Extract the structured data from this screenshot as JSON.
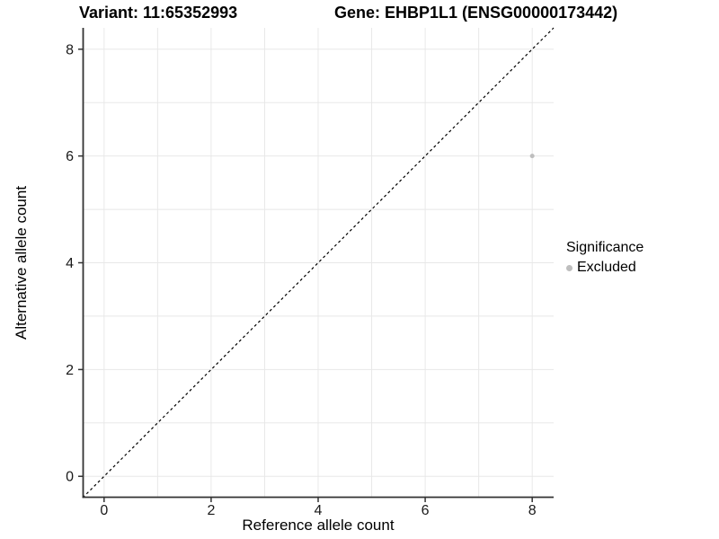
{
  "chart_data": {
    "type": "scatter",
    "title_left": "Variant: 11:65352993",
    "title_right": "Gene: EHBP1L1 (ENSG00000173442)",
    "xlabel": "Reference allele count",
    "ylabel": "Alternative allele count",
    "xlim": [
      -0.4,
      8.4
    ],
    "ylim": [
      -0.4,
      8.4
    ],
    "xticks": [
      0,
      2,
      4,
      6,
      8
    ],
    "yticks": [
      0,
      2,
      4,
      6,
      8
    ],
    "gridlines_x": [
      0,
      1,
      2,
      3,
      4,
      5,
      6,
      7,
      8
    ],
    "gridlines_y": [
      0,
      1,
      2,
      3,
      4,
      5,
      6,
      7,
      8
    ],
    "grid": true,
    "identity_line": {
      "type": "dashed",
      "x1": -0.4,
      "y1": -0.4,
      "x2": 8.4,
      "y2": 8.4,
      "color": "#000000"
    },
    "series": [
      {
        "name": "Excluded",
        "color": "#bebebe",
        "points": [
          {
            "x": 8,
            "y": 6
          }
        ]
      }
    ],
    "legend": {
      "position": "right",
      "title": "Significance",
      "items": [
        {
          "label": "Excluded",
          "color": "#bebebe"
        }
      ]
    },
    "colors": {
      "grid": "#e8e8e8",
      "axis": "#333333",
      "tick_text": "#1a1a1a",
      "point": "#bebebe"
    }
  }
}
